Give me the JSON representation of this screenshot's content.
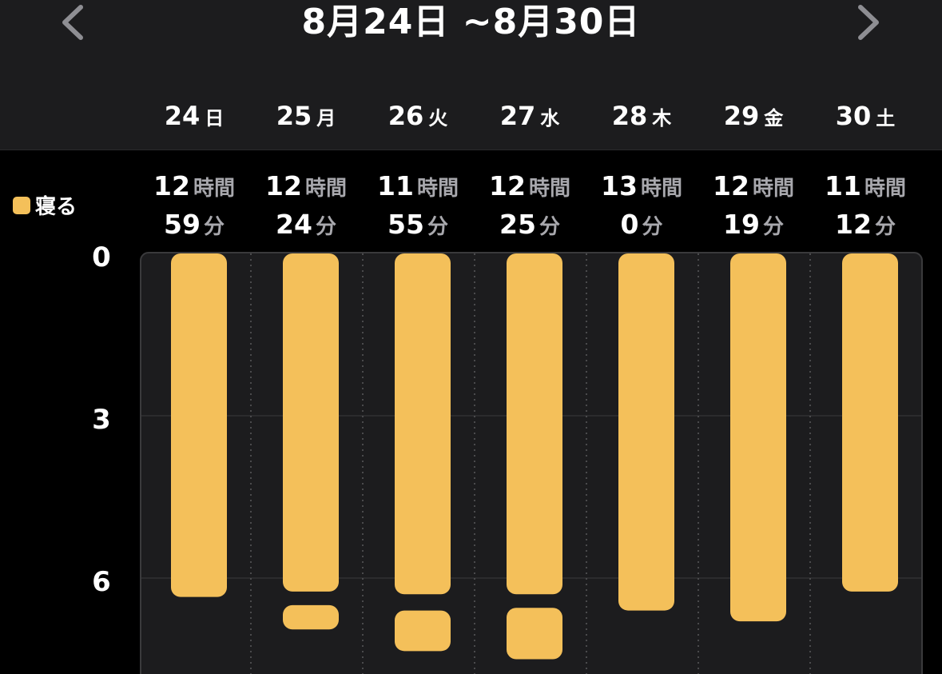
{
  "header": {
    "range_title": "8月24日 ~8月30日",
    "prev_icon": "chevron-left-icon",
    "next_icon": "chevron-right-icon"
  },
  "legend": {
    "label": "寝る",
    "color": "#f4c05a"
  },
  "days": [
    {
      "num": "24",
      "weekday": "日",
      "hours": "12",
      "hours_unit": "時間",
      "minutes": "59",
      "minutes_unit": "分"
    },
    {
      "num": "25",
      "weekday": "月",
      "hours": "12",
      "hours_unit": "時間",
      "minutes": "24",
      "minutes_unit": "分"
    },
    {
      "num": "26",
      "weekday": "火",
      "hours": "11",
      "hours_unit": "時間",
      "minutes": "55",
      "minutes_unit": "分"
    },
    {
      "num": "27",
      "weekday": "水",
      "hours": "12",
      "hours_unit": "時間",
      "minutes": "25",
      "minutes_unit": "分"
    },
    {
      "num": "28",
      "weekday": "木",
      "hours": "13",
      "hours_unit": "時間",
      "minutes": "0",
      "minutes_unit": "分"
    },
    {
      "num": "29",
      "weekday": "金",
      "hours": "12",
      "hours_unit": "時間",
      "minutes": "19",
      "minutes_unit": "分"
    },
    {
      "num": "30",
      "weekday": "土",
      "hours": "11",
      "hours_unit": "時間",
      "minutes": "12",
      "minutes_unit": "分"
    }
  ],
  "chart_data": {
    "type": "bar",
    "orientation": "vertical-range",
    "categories": [
      "24 日",
      "25 月",
      "26 火",
      "27 水",
      "28 木",
      "29 金",
      "30 土"
    ],
    "y_ticks": [
      "0",
      "3",
      "6"
    ],
    "ylim": [
      0,
      7.8
    ],
    "y_inverted": true,
    "grid": true,
    "series": [
      {
        "name": "寝る",
        "color": "#f4c05a",
        "segments": [
          [
            [
              0,
              6.35
            ]
          ],
          [
            [
              0,
              6.25
            ],
            [
              6.5,
              6.95
            ]
          ],
          [
            [
              0,
              6.3
            ],
            [
              6.6,
              7.35
            ]
          ],
          [
            [
              0,
              6.3
            ],
            [
              6.55,
              7.5
            ]
          ],
          [
            [
              0,
              6.6
            ]
          ],
          [
            [
              0,
              6.8
            ]
          ],
          [
            [
              0,
              6.25
            ]
          ]
        ]
      }
    ]
  }
}
